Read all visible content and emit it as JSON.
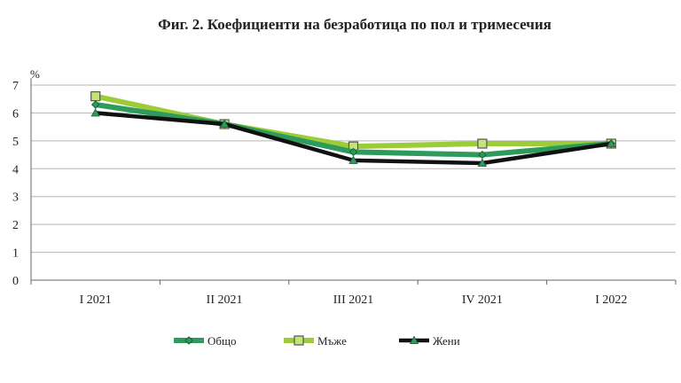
{
  "chart_data": {
    "type": "line",
    "title": "Фиг. 2. Коефициенти на безработица по пол и тримесечия",
    "unit_label": "%",
    "categories": [
      "I 2021",
      "II 2021",
      "III 2021",
      "IV 2021",
      "I 2022"
    ],
    "ylim": [
      0,
      7
    ],
    "yticks": [
      0,
      1,
      2,
      3,
      4,
      5,
      6,
      7
    ],
    "grid": true,
    "legend_position": "bottom",
    "series": [
      {
        "name": "Общо",
        "values": [
          6.3,
          5.6,
          4.6,
          4.5,
          4.9
        ],
        "color": "#2e9a5c",
        "marker": "diamond"
      },
      {
        "name": "Мъже",
        "values": [
          6.6,
          5.6,
          4.8,
          4.9,
          4.9
        ],
        "color": "#9ccc3a",
        "marker": "square"
      },
      {
        "name": "Жени",
        "values": [
          6.0,
          5.6,
          4.3,
          4.2,
          4.9
        ],
        "color": "#111111",
        "marker": "triangle"
      }
    ]
  }
}
